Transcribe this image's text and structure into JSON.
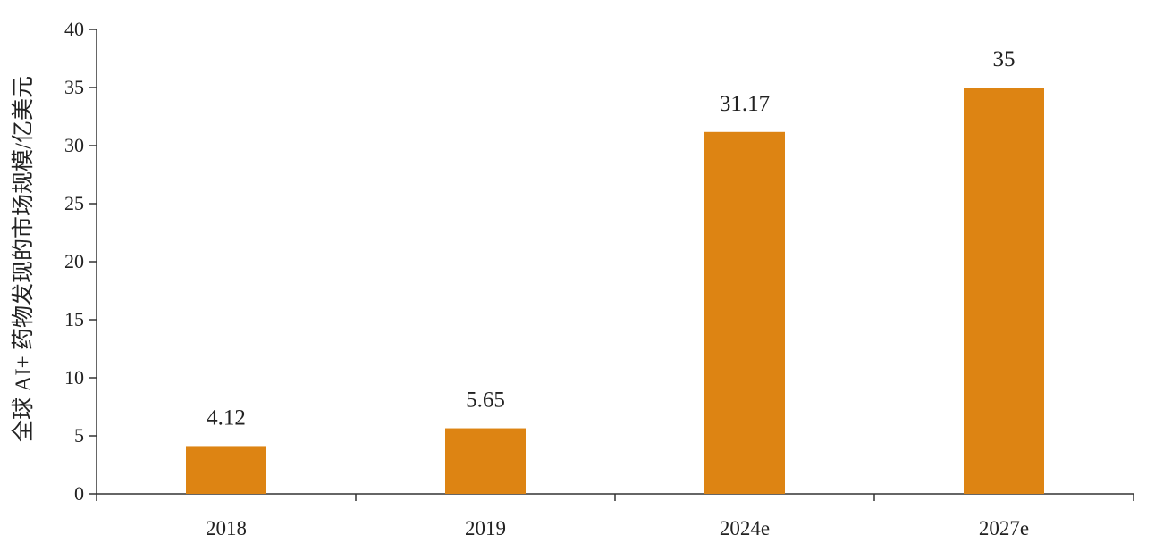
{
  "chart_data": {
    "type": "bar",
    "categories": [
      "2018",
      "2019",
      "2024e",
      "2027e"
    ],
    "values": [
      4.12,
      5.65,
      31.17,
      35
    ],
    "value_labels": [
      "4.12",
      "5.65",
      "31.17",
      "35"
    ],
    "title": "",
    "xlabel": "",
    "ylabel": "全球 AI+ 药物发现的市场规模/亿美元",
    "ylim": [
      0,
      40
    ],
    "yticks": [
      0,
      5,
      10,
      15,
      20,
      25,
      30,
      35,
      40
    ],
    "grid": false,
    "legend": "none",
    "bar_color": "#DD8413",
    "axis_color": "#333333"
  }
}
